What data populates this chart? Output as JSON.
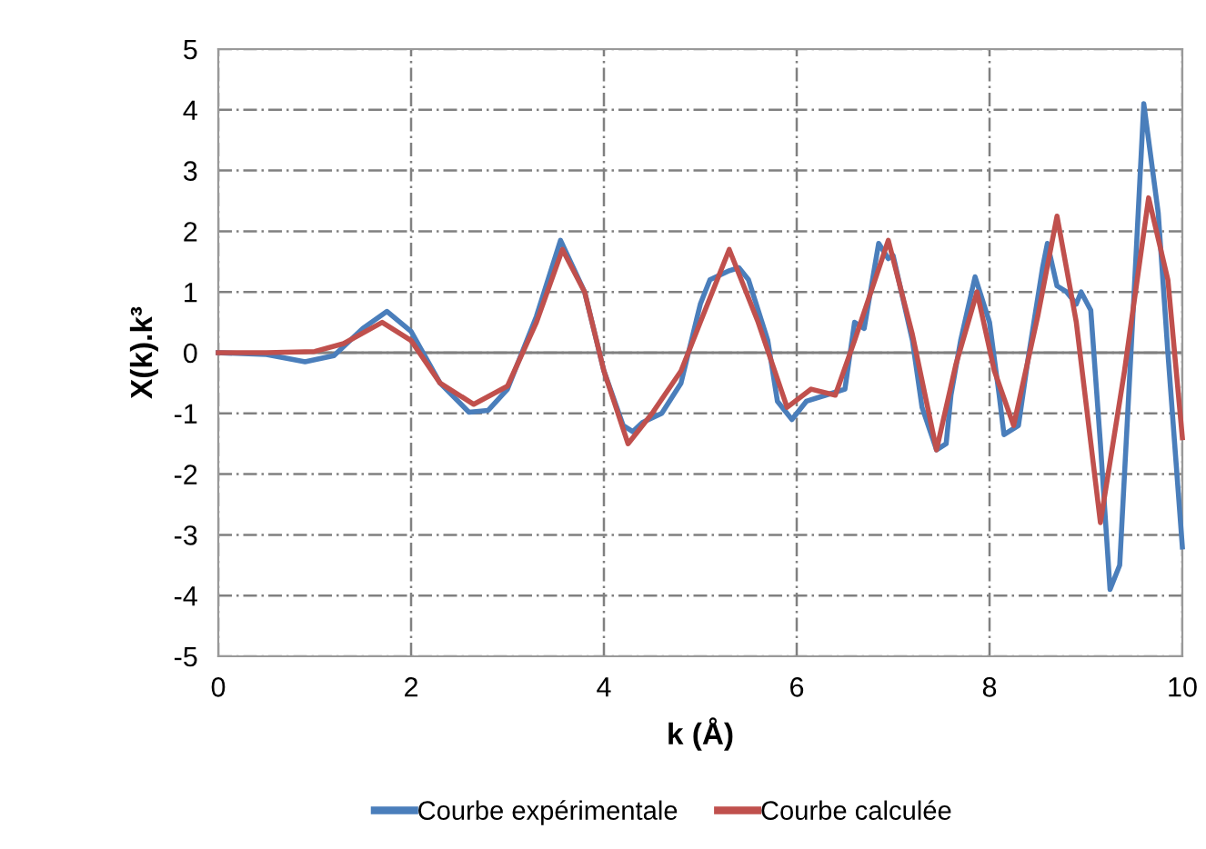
{
  "chart_data": {
    "type": "line",
    "xlabel": "k (Å)",
    "ylabel": "X(k).k³",
    "xlim": [
      0,
      10
    ],
    "xticks": [
      0,
      2,
      4,
      6,
      8,
      10
    ],
    "ylim": [
      -5,
      5
    ],
    "yticks": [
      -5,
      -4,
      -3,
      -2,
      -1,
      0,
      1,
      2,
      3,
      4,
      5
    ],
    "grid": true,
    "legend": "bottom",
    "marker": "none",
    "line_style": "solid",
    "series": [
      {
        "name": "Courbe expérimentale",
        "color": "#4a7ebb",
        "x": [
          0,
          0.5,
          0.9,
          1.2,
          1.5,
          1.75,
          2.0,
          2.3,
          2.6,
          2.8,
          3.0,
          3.3,
          3.55,
          3.8,
          4.0,
          4.2,
          4.3,
          4.4,
          4.6,
          4.8,
          5.0,
          5.1,
          5.3,
          5.4,
          5.5,
          5.7,
          5.8,
          5.95,
          6.1,
          6.3,
          6.5,
          6.6,
          6.7,
          6.85,
          6.95,
          7.0,
          7.2,
          7.3,
          7.45,
          7.55,
          7.6,
          7.7,
          7.85,
          8.0,
          8.1,
          8.15,
          8.3,
          8.4,
          8.55,
          8.6,
          8.7,
          8.8,
          8.9,
          8.95,
          9.05,
          9.15,
          9.25,
          9.35,
          9.5,
          9.6,
          9.75,
          9.85,
          10.0
        ],
        "values": [
          0,
          -0.03,
          -0.15,
          -0.05,
          0.4,
          0.68,
          0.35,
          -0.5,
          -0.98,
          -0.95,
          -0.6,
          0.6,
          1.85,
          1.0,
          -0.3,
          -1.2,
          -1.3,
          -1.15,
          -1.0,
          -0.5,
          0.8,
          1.2,
          1.35,
          1.4,
          1.2,
          0.2,
          -0.8,
          -1.1,
          -0.8,
          -0.7,
          -0.6,
          0.5,
          0.4,
          1.8,
          1.55,
          1.6,
          0.2,
          -0.9,
          -1.6,
          -1.5,
          -0.7,
          0.2,
          1.25,
          0.5,
          -0.7,
          -1.35,
          -1.2,
          -0.1,
          1.4,
          1.8,
          1.1,
          1.0,
          0.8,
          1.0,
          0.7,
          -1.5,
          -3.9,
          -3.5,
          1.0,
          4.1,
          2.3,
          0.0,
          -3.2
        ]
      },
      {
        "name": "Courbe calculée",
        "color": "#c0504d",
        "x": [
          0,
          0.5,
          1.0,
          1.3,
          1.7,
          2.0,
          2.3,
          2.65,
          3.0,
          3.3,
          3.57,
          3.8,
          4.0,
          4.25,
          4.5,
          4.8,
          5.0,
          5.3,
          5.6,
          5.9,
          6.15,
          6.4,
          6.6,
          6.95,
          7.2,
          7.45,
          7.65,
          7.87,
          8.05,
          8.25,
          8.5,
          8.7,
          8.9,
          9.15,
          9.4,
          9.65,
          9.85,
          10.0
        ],
        "values": [
          0,
          0,
          0.02,
          0.15,
          0.5,
          0.2,
          -0.5,
          -0.85,
          -0.55,
          0.5,
          1.7,
          1.0,
          -0.3,
          -1.5,
          -1.0,
          -0.3,
          0.5,
          1.7,
          0.5,
          -0.9,
          -0.6,
          -0.7,
          0.2,
          1.85,
          0.3,
          -1.6,
          -0.2,
          1.0,
          -0.3,
          -1.2,
          0.6,
          2.25,
          0.5,
          -2.8,
          -0.3,
          2.55,
          1.2,
          -1.4
        ]
      }
    ]
  }
}
